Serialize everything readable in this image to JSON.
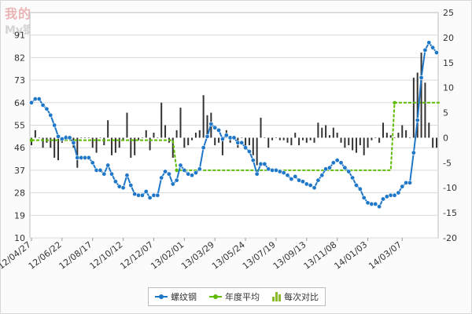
{
  "watermark": {
    "line1": "我的",
    "line2": "My钢铁"
  },
  "chart_data": {
    "type": "line",
    "title": "",
    "left_axis": {
      "ylim": [
        10,
        100
      ],
      "ticks": [
        10,
        19,
        28,
        37,
        46,
        55,
        64,
        73,
        82,
        91
      ]
    },
    "right_axis": {
      "ylim": [
        -20,
        25
      ],
      "ticks": [
        -20,
        -15,
        -10,
        -5,
        0,
        5,
        10,
        15,
        20,
        25
      ]
    },
    "x_ticks": [
      "12/04/27",
      "12/06/22",
      "12/08/17",
      "12/10/12",
      "12/12/07",
      "13/02/01",
      "13/03/29",
      "13/05/24",
      "13/07/19",
      "13/09/13",
      "13/11/08",
      "14/01/03",
      "14/03/07"
    ],
    "grid": true,
    "legend_position": "bottom",
    "series": [
      {
        "name": "螺纹钢",
        "color": "#1f77c8",
        "values": [
          64,
          65.5,
          65.5,
          63,
          61.5,
          59,
          55,
          50.5,
          49.5,
          50,
          50,
          48,
          42,
          42,
          42,
          42,
          40,
          37,
          37,
          35.5,
          39,
          35.5,
          32.5,
          30.5,
          30,
          35,
          31,
          27.5,
          27,
          27,
          28.5,
          26,
          27,
          27,
          34,
          36.5,
          35.5,
          31.5,
          33,
          39,
          37,
          35.5,
          35,
          36,
          37.5,
          46,
          50.5,
          55.5,
          54,
          53,
          49.5,
          51,
          50,
          50,
          48,
          48,
          46,
          44.5,
          41,
          35.5,
          39.5,
          39.5,
          37.5,
          37,
          37,
          36.5,
          36,
          35,
          33.5,
          34.5,
          33,
          32.5,
          31.5,
          31,
          30,
          33,
          35,
          37.5,
          38,
          40,
          41,
          40,
          38,
          36.5,
          34,
          31,
          29.5,
          26,
          24,
          23.5,
          23.5,
          22.5,
          25.5,
          26.5,
          27,
          27,
          28,
          30.5,
          32,
          32,
          44,
          57,
          74,
          85,
          88,
          86,
          84
        ]
      },
      {
        "name": "年度平均",
        "color": "#5dbb00",
        "segments": [
          {
            "from": "12/04/27",
            "to": "12/12/28",
            "value": 49
          },
          {
            "from": "13/01/04",
            "to": "13/12/27",
            "value": 37
          },
          {
            "from": "14/01/03",
            "to": "14/03/14",
            "value": 64
          }
        ]
      },
      {
        "name": "每次对比",
        "axis": "right",
        "color": "#333333",
        "values": [
          -1.5,
          1.5,
          0,
          -2,
          -1,
          -2,
          -4,
          -4.5,
          -1,
          0.5,
          0,
          -2,
          -6,
          0,
          0,
          0,
          -2,
          -3,
          0,
          -1.5,
          3.5,
          -3.5,
          -3,
          -2,
          -0.5,
          5,
          -4,
          -3.5,
          -0.5,
          0,
          1.5,
          -2.5,
          1,
          0,
          7,
          2.5,
          -1,
          -4,
          1.5,
          6,
          -2,
          -1.5,
          -0.5,
          1,
          1.5,
          8.5,
          4.5,
          5,
          -1.5,
          -1,
          -3.5,
          1.5,
          -1,
          0,
          -2,
          0,
          -2,
          -1.5,
          -3.5,
          -5.5,
          4,
          0,
          -2,
          -0.5,
          0,
          -0.5,
          -0.5,
          -1,
          -1.5,
          1,
          -1.5,
          -0.5,
          -1,
          -0.5,
          -1,
          3,
          2,
          2.5,
          0.5,
          2,
          1,
          -1,
          -2,
          -1.5,
          -2.5,
          -3,
          -1.5,
          -3.5,
          -2,
          -0.5,
          0,
          -1,
          3,
          1,
          0.5,
          0,
          1,
          2.5,
          1.5,
          0,
          12,
          13,
          17,
          11,
          3,
          -2,
          -2
        ]
      }
    ]
  }
}
